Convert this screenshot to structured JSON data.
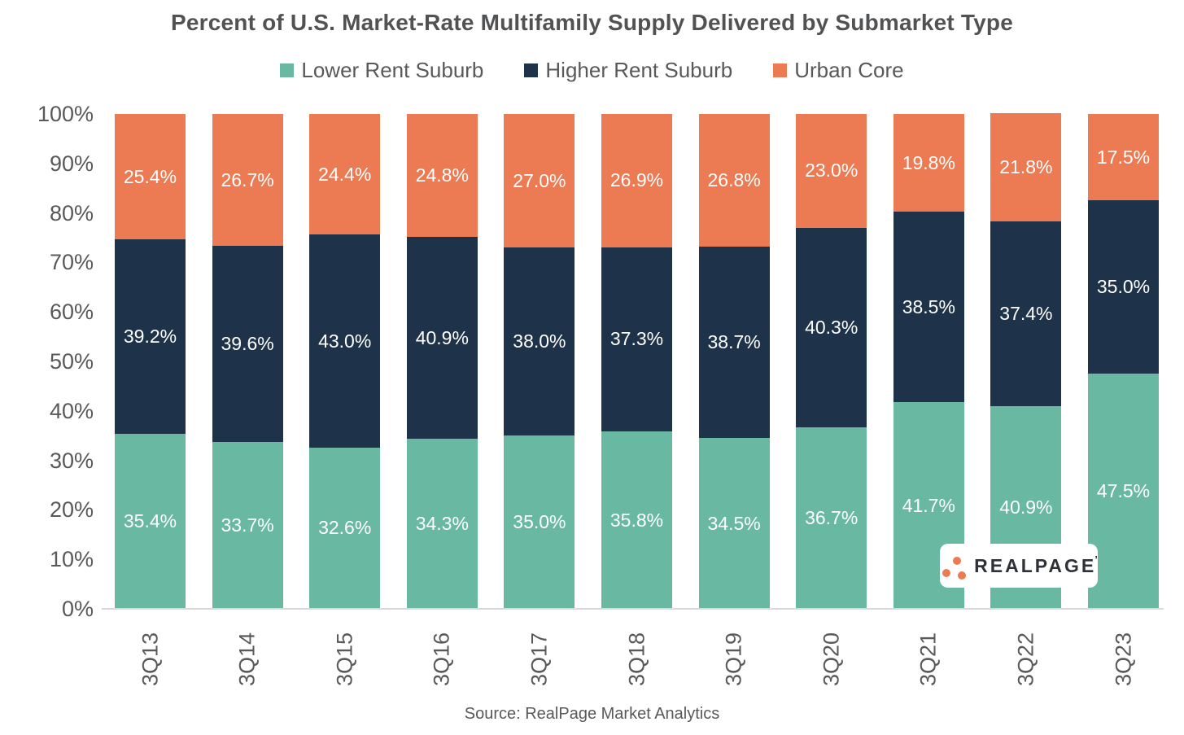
{
  "title": "Percent of U.S. Market-Rate Multifamily Supply Delivered by Submarket Type",
  "legend": [
    {
      "label": "Lower Rent Suburb",
      "color": "#69B9A2"
    },
    {
      "label": "Higher Rent Suburb",
      "color": "#1E3349"
    },
    {
      "label": "Urban Core",
      "color": "#EC7A52"
    }
  ],
  "chart_data": {
    "type": "bar",
    "stacked": true,
    "title": "Percent of U.S. Market-Rate Multifamily Supply Delivered by Submarket Type",
    "categories": [
      "3Q13",
      "3Q14",
      "3Q15",
      "3Q16",
      "3Q17",
      "3Q18",
      "3Q19",
      "3Q20",
      "3Q21",
      "3Q22",
      "3Q23"
    ],
    "series": [
      {
        "name": "Lower Rent Suburb",
        "color": "#69B9A2",
        "values": [
          35.4,
          33.7,
          32.6,
          34.3,
          35.0,
          35.8,
          34.5,
          36.7,
          41.7,
          40.9,
          47.5
        ]
      },
      {
        "name": "Higher Rent Suburb",
        "color": "#1E3349",
        "values": [
          39.2,
          39.6,
          43.0,
          40.9,
          38.0,
          37.3,
          38.7,
          40.3,
          38.5,
          37.4,
          35.0
        ]
      },
      {
        "name": "Urban Core",
        "color": "#EC7A52",
        "values": [
          25.4,
          26.7,
          24.4,
          24.8,
          27.0,
          26.9,
          26.8,
          23.0,
          19.8,
          21.8,
          17.5
        ]
      }
    ],
    "xlabel": "",
    "ylabel": "",
    "ylim": [
      0,
      100
    ],
    "y_ticks": [
      "0%",
      "10%",
      "20%",
      "30%",
      "40%",
      "50%",
      "60%",
      "70%",
      "80%",
      "90%",
      "100%"
    ],
    "grid": false,
    "legend_position": "top",
    "data_label_format": "one_decimal_percent",
    "data_label_color": "#FFFFFF"
  },
  "source": "Source: RealPage Market Analytics",
  "logo": {
    "text": "REALPAGE",
    "trademark": "’",
    "dot_color": "#EC7A52",
    "text_color": "#2E3138"
  },
  "colors": {
    "title_text": "#515254",
    "axis_text": "#595959",
    "baseline": "#D9D9D9",
    "background": "#FFFFFF"
  }
}
